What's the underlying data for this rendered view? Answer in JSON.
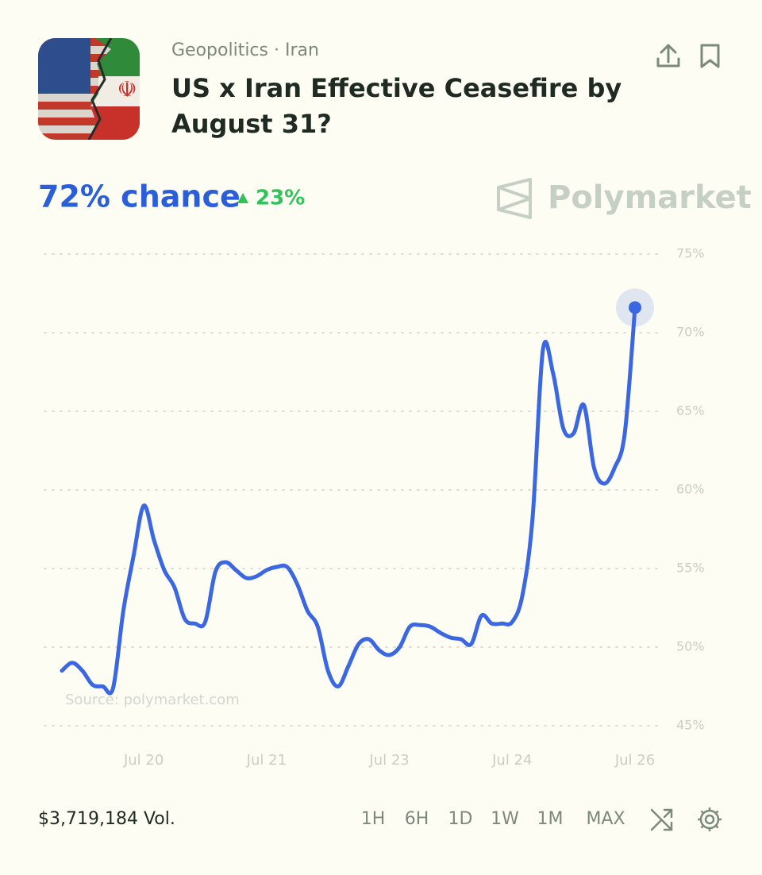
{
  "header": {
    "category": "Geopolitics · Iran",
    "title_line1": "US x Iran Effective Ceasefire by",
    "title_line2": "August 31?"
  },
  "summary": {
    "chance": "72% chance",
    "change": "23%"
  },
  "brand": "Polymarket",
  "chart_data": {
    "type": "line",
    "categories": [
      null,
      null,
      null,
      null,
      null,
      null,
      null,
      null,
      "Jul 20",
      null,
      null,
      null,
      null,
      null,
      null,
      null,
      null,
      null,
      null,
      null,
      "Jul 21",
      null,
      null,
      null,
      null,
      null,
      null,
      null,
      null,
      null,
      null,
      null,
      "Jul 23",
      null,
      null,
      null,
      null,
      null,
      null,
      null,
      null,
      null,
      null,
      null,
      "Jul 24",
      null,
      null,
      null,
      null,
      null,
      null,
      null,
      null,
      null,
      null,
      null,
      "Jul 26"
    ],
    "series": [
      {
        "color": "#3b68e0",
        "values": [
          48.5,
          49.0,
          48.5,
          47.6,
          47.5,
          47.4,
          52.3,
          55.8,
          59.0,
          56.8,
          54.9,
          53.8,
          51.8,
          51.5,
          51.6,
          54.8,
          55.4,
          54.9,
          54.4,
          54.5,
          54.9,
          55.1,
          55.1,
          54.0,
          52.3,
          51.3,
          48.5,
          47.5,
          48.8,
          50.2,
          50.5,
          49.8,
          49.5,
          50.0,
          51.3,
          51.4,
          51.3,
          50.9,
          50.6,
          50.5,
          50.2,
          52.0,
          51.5,
          51.5,
          51.6,
          53.3,
          58.3,
          68.9,
          67.4,
          63.9,
          63.6,
          65.4,
          61.4,
          60.4,
          61.4,
          63.6,
          71.6
        ]
      }
    ],
    "ylim": [
      45,
      75
    ],
    "yticks": [
      {
        "value": 45,
        "label": "45%"
      },
      {
        "value": 50,
        "label": "50%"
      },
      {
        "value": 55,
        "label": "55%"
      },
      {
        "value": 60,
        "label": "60%"
      },
      {
        "value": 65,
        "label": "65%"
      },
      {
        "value": 70,
        "label": "70%"
      },
      {
        "value": 75,
        "label": "75%"
      }
    ],
    "grid": true,
    "source": "Source: polymarket.com"
  },
  "footer": {
    "volume": "$3,719,184 Vol.",
    "ranges": [
      "1H",
      "6H",
      "1D",
      "1W",
      "1M",
      "MAX"
    ]
  }
}
